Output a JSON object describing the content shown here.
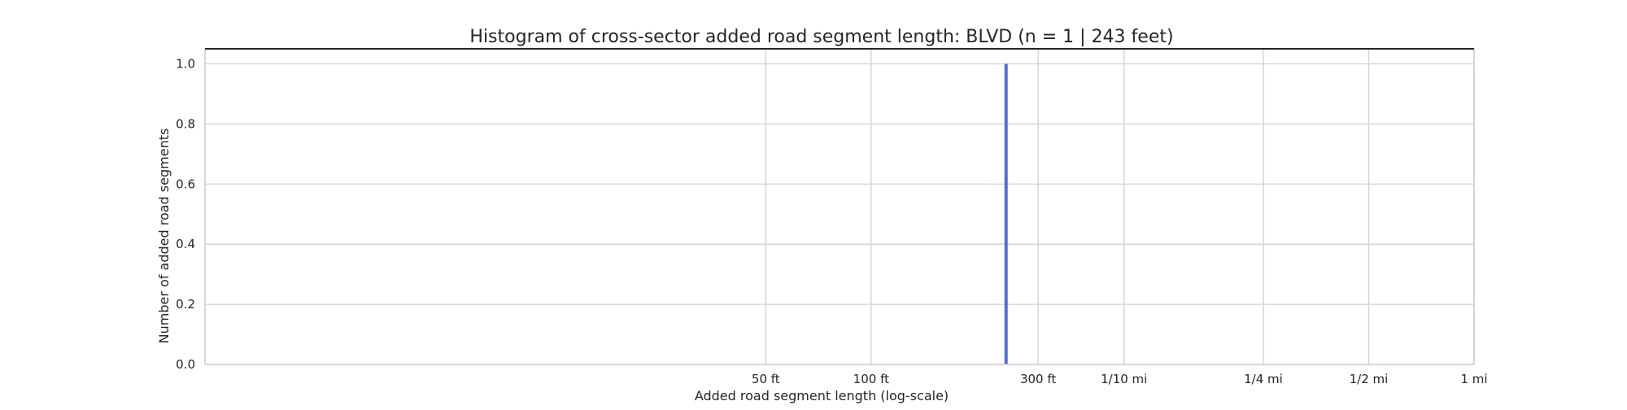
{
  "chart_data": {
    "type": "bar",
    "title": "Histogram of cross-sector added road segment length: BLVD (n = 1 | 243 feet)",
    "xlabel": "Added road segment length (log-scale)",
    "ylabel": "Number of added road segments",
    "xscale": "log",
    "x_unit": "feet",
    "xlim": [
      1.25,
      5280
    ],
    "ylim": [
      0,
      1.05
    ],
    "x_ticks": [
      {
        "value": 50,
        "label": "50 ft"
      },
      {
        "value": 100,
        "label": "100 ft"
      },
      {
        "value": 300,
        "label": "300 ft"
      },
      {
        "value": 528,
        "label": "1/10 mi"
      },
      {
        "value": 1320,
        "label": "1/4 mi"
      },
      {
        "value": 2640,
        "label": "1/2 mi"
      },
      {
        "value": 5280,
        "label": "1 mi"
      }
    ],
    "y_ticks": [
      {
        "value": 0.0,
        "label": "0.0"
      },
      {
        "value": 0.2,
        "label": "0.2"
      },
      {
        "value": 0.4,
        "label": "0.4"
      },
      {
        "value": 0.6,
        "label": "0.6"
      },
      {
        "value": 0.8,
        "label": "0.8"
      },
      {
        "value": 1.0,
        "label": "1.0"
      }
    ],
    "bars": [
      {
        "x": 243,
        "value": 1
      }
    ],
    "grid": true,
    "bar_color": "#4c72db"
  }
}
